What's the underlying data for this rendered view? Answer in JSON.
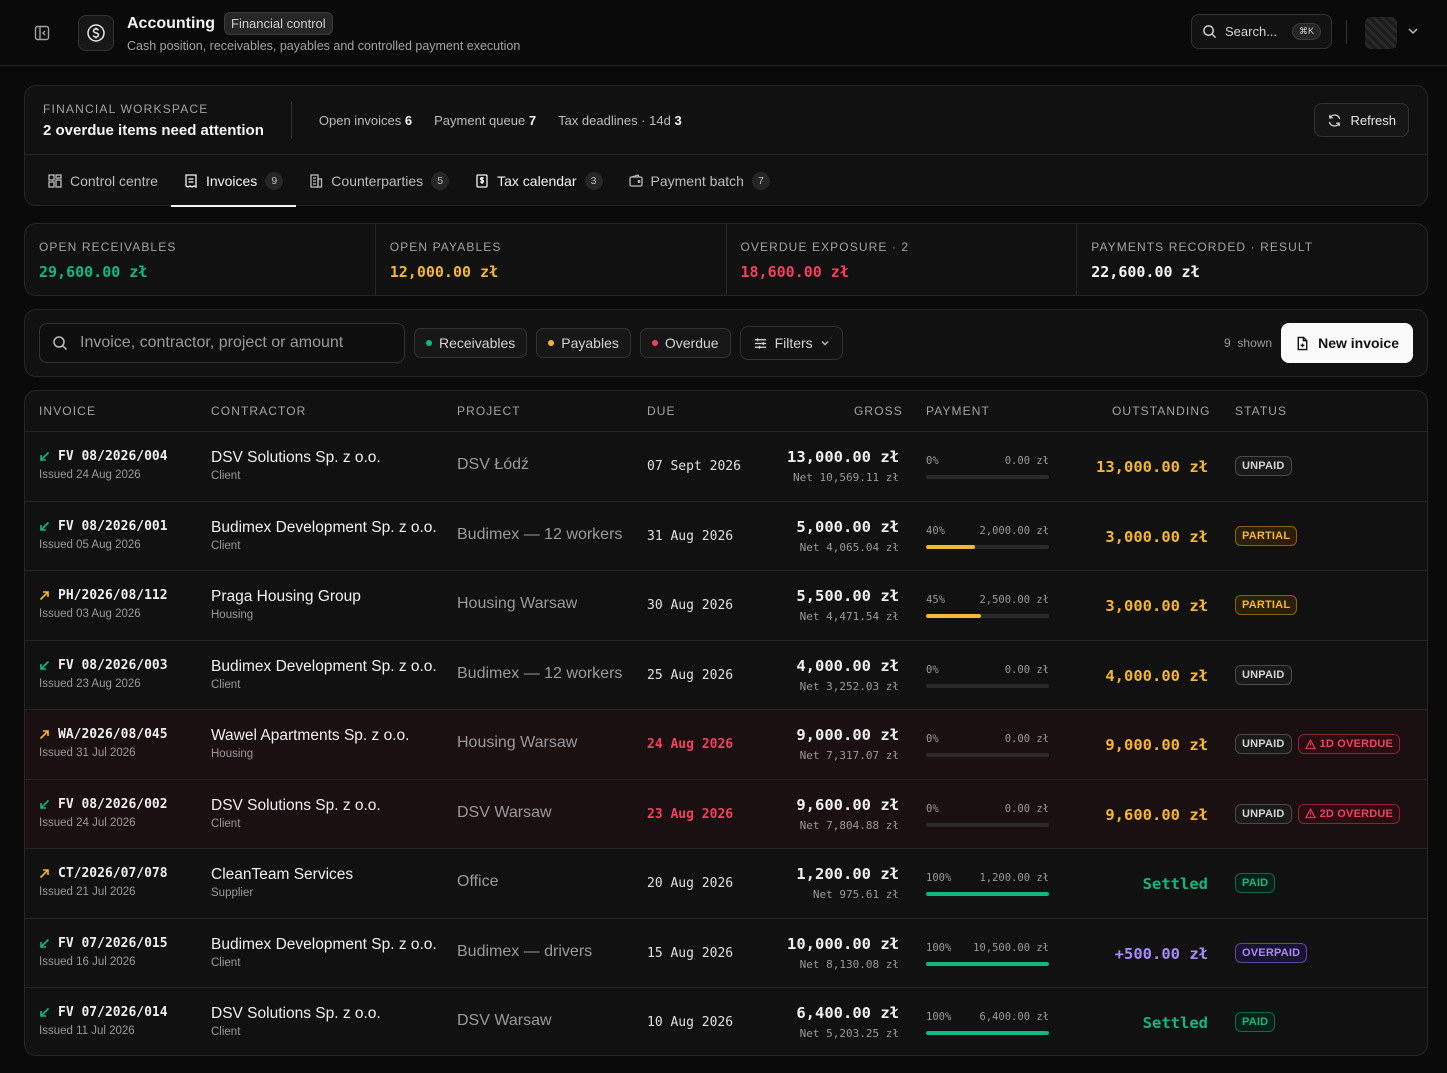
{
  "header": {
    "title": "Accounting",
    "badge": "Financial control",
    "subtitle": "Cash position, receivables, payables and controlled payment execution",
    "search_label": "Search...",
    "search_shortcut": "⌘K"
  },
  "workspace": {
    "label": "FINANCIAL WORKSPACE",
    "title": "2 overdue items need attention",
    "stats": [
      {
        "label": "Open invoices",
        "value": "6"
      },
      {
        "label": "Payment queue",
        "value": "7"
      },
      {
        "label": "Tax deadlines · 14d",
        "value": "3"
      }
    ],
    "refresh_label": "Refresh"
  },
  "tabs": [
    {
      "label": "Control centre",
      "count": "",
      "icon": "grid-icon"
    },
    {
      "label": "Invoices",
      "count": "9",
      "icon": "receipt-icon"
    },
    {
      "label": "Counterparties",
      "count": "5",
      "icon": "building-icon"
    },
    {
      "label": "Tax calendar",
      "count": "3",
      "icon": "tax-icon"
    },
    {
      "label": "Payment batch",
      "count": "7",
      "icon": "wallet-icon"
    }
  ],
  "summary": [
    {
      "label": "OPEN RECEIVABLES",
      "value": "29,600.00 zł",
      "color": "#10b981"
    },
    {
      "label": "OPEN PAYABLES",
      "value": "12,000.00 zł",
      "color": "#f5b731"
    },
    {
      "label": "OVERDUE EXPOSURE · 2",
      "value": "18,600.00 zł",
      "color": "#f43f5e"
    },
    {
      "label": "PAYMENTS RECORDED · RESULT",
      "value": "22,600.00 zł",
      "color": "#f5f5f5"
    }
  ],
  "toolbar": {
    "search_placeholder": "Invoice, contractor, project or amount",
    "chips": [
      {
        "label": "Receivables",
        "color": "#10b981"
      },
      {
        "label": "Payables",
        "color": "#f5b731"
      },
      {
        "label": "Overdue",
        "color": "#f43f5e"
      }
    ],
    "filters_label": "Filters",
    "shown_count": "9",
    "shown_label": "shown",
    "new_label": "New invoice"
  },
  "table": {
    "columns": {
      "invoice": "INVOICE",
      "contractor": "CONTRACTOR",
      "project": "PROJECT",
      "due": "DUE",
      "gross": "GROSS",
      "payment": "PAYMENT",
      "outstanding": "OUTSTANDING",
      "status": "STATUS"
    },
    "rows": [
      {
        "direction": "in",
        "number": "FV 08/2026/004",
        "issued": "Issued 24 Aug 2026",
        "contractor": "DSV Solutions Sp. z o.o.",
        "type": "Client",
        "project": "DSV Łódź",
        "due": "07 Sept 2026",
        "overdue": false,
        "gross": "13,000.00 zł",
        "net": "Net 10,569.11 zł",
        "pct": "0%",
        "paid": "0.00 zł",
        "fill": 0,
        "outstanding": "13,000.00 zł",
        "out_color": "#f5b731",
        "status": "UNPAID",
        "status_kind": "unpaid",
        "late": ""
      },
      {
        "direction": "in",
        "number": "FV 08/2026/001",
        "issued": "Issued 05 Aug 2026",
        "contractor": "Budimex Development Sp. z o.o.",
        "type": "Client",
        "project": "Budimex — 12 workers",
        "due": "31 Aug 2026",
        "overdue": false,
        "gross": "5,000.00 zł",
        "net": "Net 4,065.04 zł",
        "pct": "40%",
        "paid": "2,000.00 zł",
        "fill": 40,
        "outstanding": "3,000.00 zł",
        "out_color": "#f5b731",
        "status": "PARTIAL",
        "status_kind": "partial",
        "late": ""
      },
      {
        "direction": "out",
        "number": "PH/2026/08/112",
        "issued": "Issued 03 Aug 2026",
        "contractor": "Praga Housing Group",
        "type": "Housing",
        "project": "Housing Warsaw",
        "due": "30 Aug 2026",
        "overdue": false,
        "gross": "5,500.00 zł",
        "net": "Net 4,471.54 zł",
        "pct": "45%",
        "paid": "2,500.00 zł",
        "fill": 45,
        "outstanding": "3,000.00 zł",
        "out_color": "#f5b731",
        "status": "PARTIAL",
        "status_kind": "partial",
        "late": ""
      },
      {
        "direction": "in",
        "number": "FV 08/2026/003",
        "issued": "Issued 23 Aug 2026",
        "contractor": "Budimex Development Sp. z o.o.",
        "type": "Client",
        "project": "Budimex — 12 workers",
        "due": "25 Aug 2026",
        "overdue": false,
        "gross": "4,000.00 zł",
        "net": "Net 3,252.03 zł",
        "pct": "0%",
        "paid": "0.00 zł",
        "fill": 0,
        "outstanding": "4,000.00 zł",
        "out_color": "#f5b731",
        "status": "UNPAID",
        "status_kind": "unpaid",
        "late": ""
      },
      {
        "direction": "out",
        "number": "WA/2026/08/045",
        "issued": "Issued 31 Jul 2026",
        "contractor": "Wawel Apartments Sp. z o.o.",
        "type": "Housing",
        "project": "Housing Warsaw",
        "due": "24 Aug 2026",
        "overdue": true,
        "gross": "9,000.00 zł",
        "net": "Net 7,317.07 zł",
        "pct": "0%",
        "paid": "0.00 zł",
        "fill": 0,
        "outstanding": "9,000.00 zł",
        "out_color": "#f5b731",
        "status": "UNPAID",
        "status_kind": "unpaid",
        "late": "1D OVERDUE"
      },
      {
        "direction": "in",
        "number": "FV 08/2026/002",
        "issued": "Issued 24 Jul 2026",
        "contractor": "DSV Solutions Sp. z o.o.",
        "type": "Client",
        "project": "DSV Warsaw",
        "due": "23 Aug 2026",
        "overdue": true,
        "gross": "9,600.00 zł",
        "net": "Net 7,804.88 zł",
        "pct": "0%",
        "paid": "0.00 zł",
        "fill": 0,
        "outstanding": "9,600.00 zł",
        "out_color": "#f5b731",
        "status": "UNPAID",
        "status_kind": "unpaid",
        "late": "2D OVERDUE"
      },
      {
        "direction": "out",
        "number": "CT/2026/07/078",
        "issued": "Issued 21 Jul 2026",
        "contractor": "CleanTeam Services",
        "type": "Supplier",
        "project": "Office",
        "due": "20 Aug 2026",
        "overdue": false,
        "gross": "1,200.00 zł",
        "net": "Net 975.61 zł",
        "pct": "100%",
        "paid": "1,200.00 zł",
        "fill": 100,
        "outstanding": "Settled",
        "out_color": "#10b981",
        "status": "PAID",
        "status_kind": "paid",
        "late": ""
      },
      {
        "direction": "in",
        "number": "FV 07/2026/015",
        "issued": "Issued 16 Jul 2026",
        "contractor": "Budimex Development Sp. z o.o.",
        "type": "Client",
        "project": "Budimex — drivers",
        "due": "15 Aug 2026",
        "overdue": false,
        "gross": "10,000.00 zł",
        "net": "Net 8,130.08 zł",
        "pct": "100%",
        "paid": "10,500.00 zł",
        "fill": 100,
        "outstanding": "+500.00 zł",
        "out_color": "#a78bfa",
        "status": "OVERPAID",
        "status_kind": "over",
        "late": ""
      },
      {
        "direction": "in",
        "number": "FV 07/2026/014",
        "issued": "Issued 11 Jul 2026",
        "contractor": "DSV Solutions Sp. z o.o.",
        "type": "Client",
        "project": "DSV Warsaw",
        "due": "10 Aug 2026",
        "overdue": false,
        "gross": "6,400.00 zł",
        "net": "Net 5,203.25 zł",
        "pct": "100%",
        "paid": "6,400.00 zł",
        "fill": 100,
        "outstanding": "Settled",
        "out_color": "#10b981",
        "status": "PAID",
        "status_kind": "paid",
        "late": ""
      }
    ]
  }
}
